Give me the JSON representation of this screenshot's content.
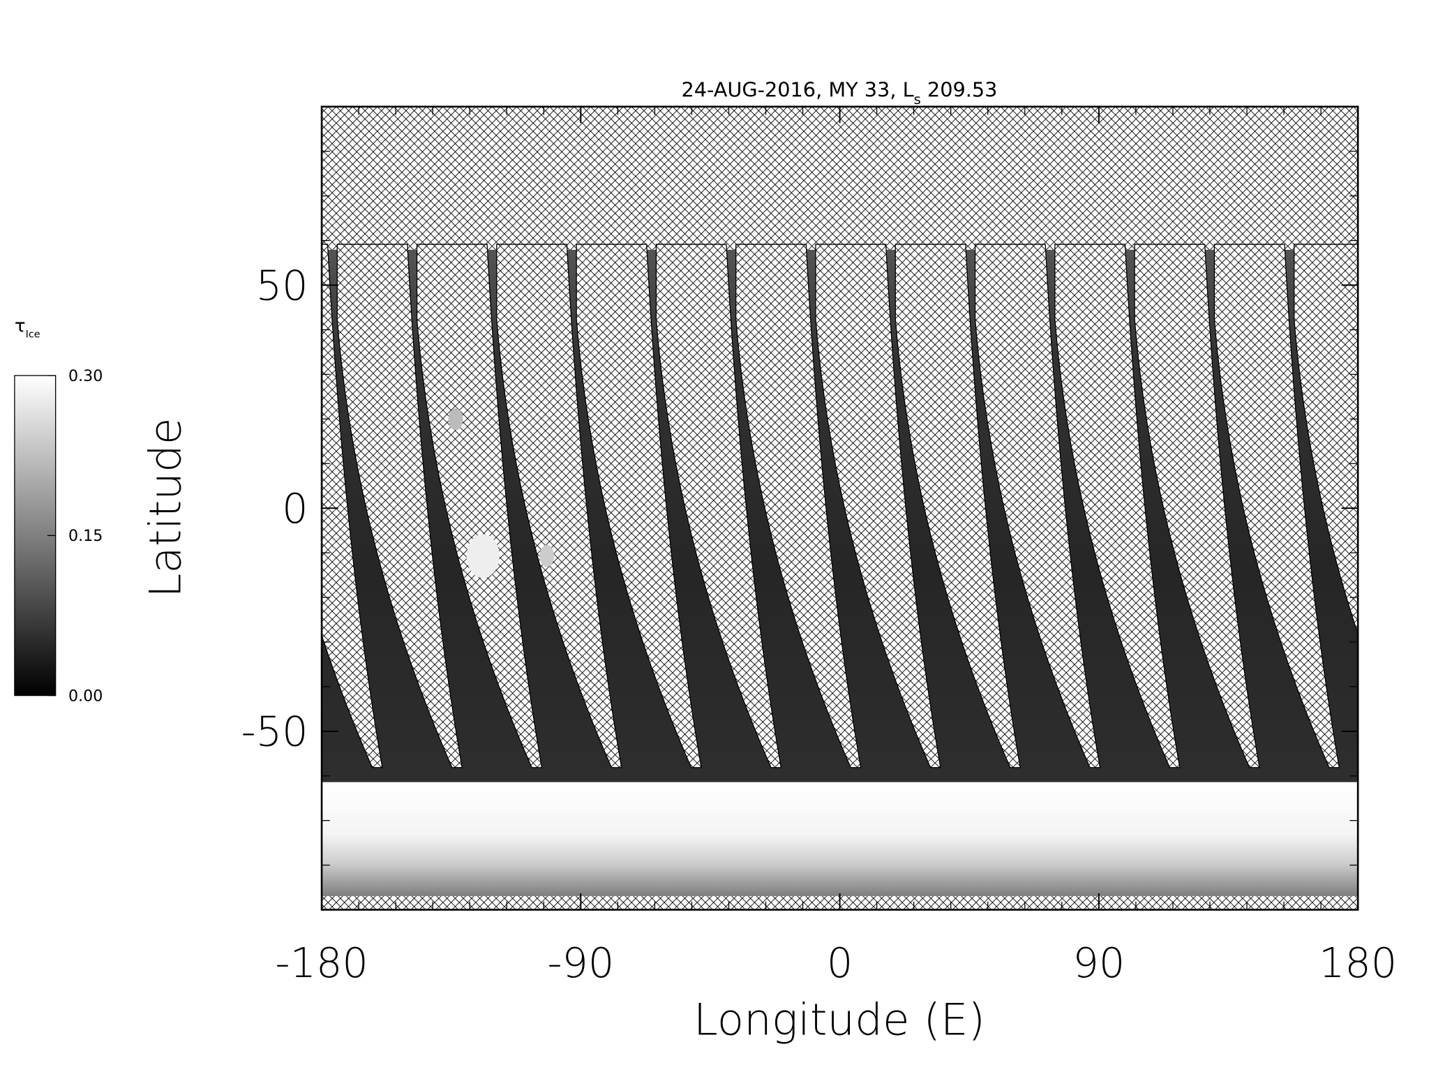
{
  "chart_data": {
    "type": "map",
    "title": {
      "text": "24-AUG-2016, MY 33,  L",
      "subscript": "s",
      "suffix": " 209.53"
    },
    "xlabel": "Longitude (E)",
    "ylabel": "Latitude",
    "xlim": [
      -180,
      180
    ],
    "xticks": [
      -180,
      -90,
      0,
      90,
      180
    ],
    "ylim": [
      -90,
      90
    ],
    "yticks": [
      -50,
      0,
      50
    ],
    "colorbar": {
      "label": "τ",
      "label_subscript": "Ice",
      "clim": [
        0,
        0.3
      ],
      "ticks": [
        {
          "value": 0,
          "label": "0.00"
        },
        0.15,
        {
          "value": 0.3,
          "label": "0.30"
        }
      ],
      "colors": [
        "#000000",
        "#ffffff"
      ]
    }
  }
}
